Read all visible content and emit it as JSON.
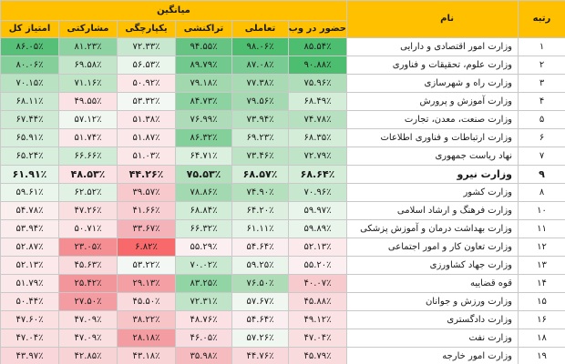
{
  "header": {
    "rank": "رتبه",
    "name": "نام",
    "group": "میانگین",
    "columns": [
      "حضور در وب",
      "تعاملی",
      "تراکنشی",
      "یکپارچگی",
      "مشارکتی",
      "امتیاز کل"
    ]
  },
  "rows": [
    {
      "rank": "۱",
      "name": "وزارت امور اقتصادی و دارایی",
      "bold": false,
      "values": [
        "۸۵.۵۴٪",
        "۹۸.۰۶٪",
        "۹۴.۵۵٪",
        "۷۲.۳۳٪",
        "۸۱.۲۳٪",
        "۸۶.۰۵٪"
      ],
      "colors": [
        "#4dbd6f",
        "#4dbd6f",
        "#66c483",
        "#c7e8cf",
        "#8dd3a2",
        "#57c078"
      ]
    },
    {
      "rank": "۲",
      "name": "وزارت علوم، تحقیقات و فناوری",
      "bold": false,
      "values": [
        "۹۰.۸۸٪",
        "۸۷.۰۸٪",
        "۸۹.۷۹٪",
        "۵۶.۵۳٪",
        "۶۹.۵۸٪",
        "۸۰.۰۶٪"
      ],
      "colors": [
        "#4dbd6f",
        "#78cb92",
        "#72c98d",
        "#eaf5ec",
        "#c3e6ca",
        "#84cf9a"
      ]
    },
    {
      "rank": "۳",
      "name": "وزارت راه و شهرسازی",
      "bold": false,
      "values": [
        "۷۵.۹۶٪",
        "۷۷.۳۸٪",
        "۷۹.۱۸٪",
        "۵۰.۹۲٪",
        "۷۱.۱۶٪",
        "۷۰.۱۵٪"
      ],
      "colors": [
        "#b0deba",
        "#a8dbb4",
        "#a1d8ae",
        "#fbe6e8",
        "#bfe4c6",
        "#b9e2c2"
      ]
    },
    {
      "rank": "۴",
      "name": "وزارت آموزش و پرورش",
      "bold": false,
      "values": [
        "۶۸.۴۹٪",
        "۷۹.۵۶٪",
        "۸۴.۷۳٪",
        "۵۳.۳۲٪",
        "۴۹.۵۵٪",
        "۶۸.۱۱٪"
      ],
      "colors": [
        "#d3edd8",
        "#a4d9b1",
        "#8cd3a1",
        "#f4f8f4",
        "#fbe3e5",
        "#cbe9d2"
      ]
    },
    {
      "rank": "۵",
      "name": "وزارت صنعت، معدن، تجارت",
      "bold": false,
      "values": [
        "۷۴.۷۸٪",
        "۷۳.۹۴٪",
        "۷۶.۹۹٪",
        "۵۱.۳۸٪",
        "۵۷.۱۲٪",
        "۶۷.۴۴٪"
      ],
      "colors": [
        "#b6e0bf",
        "#b8e1c1",
        "#aedcb8",
        "#fbe7e9",
        "#f0f7f1",
        "#cee9d4"
      ]
    },
    {
      "rank": "۶",
      "name": "وزارت ارتباطات و فناوری اطلاعات",
      "bold": false,
      "values": [
        "۶۸.۳۵٪",
        "۶۹.۲۳٪",
        "۸۶.۳۲٪",
        "۵۱.۸۷٪",
        "۵۱.۷۴٪",
        "۶۵.۹۱٪"
      ],
      "colors": [
        "#d3edd8",
        "#cfebd5",
        "#84d09a",
        "#fbe8ea",
        "#fbe8ea",
        "#d6eedb"
      ]
    },
    {
      "rank": "۷",
      "name": "نهاد ریاست جمهوری",
      "bold": false,
      "values": [
        "۷۲.۷۹٪",
        "۷۳.۴۶٪",
        "۶۴.۷۱٪",
        "۵۱.۰۳٪",
        "۶۶.۶۶٪",
        "۶۵.۲۴٪"
      ],
      "colors": [
        "#bfe4c7",
        "#bce3c4",
        "#dbf0df",
        "#fbe6e8",
        "#d0ecd6",
        "#d8efdd"
      ]
    },
    {
      "rank": "۹",
      "name": "وزارت نیرو",
      "bold": true,
      "values": [
        "۶۸.۶۴٪",
        "۶۸.۵۷٪",
        "۷۵.۵۳٪",
        "۴۴.۲۶٪",
        "۴۸.۵۳٪",
        "۶۱.۹۱٪"
      ],
      "colors": [
        "#d3edd8",
        "#d3edd8",
        "#b2dfbc",
        "#f9d8db",
        "#fbe2e4",
        "#e4f3e7"
      ]
    },
    {
      "rank": "۸",
      "name": "وزارت کشور",
      "bold": false,
      "values": [
        "۷۰.۹۶٪",
        "۷۴.۹۰٪",
        "۷۸.۸۶٪",
        "۳۹.۵۷٪",
        "۶۲.۵۲٪",
        "۵۹.۶۱٪"
      ],
      "colors": [
        "#c7e8cf",
        "#b5e0be",
        "#a3d9b0",
        "#f7c8cc",
        "#e1f2e4",
        "#eaf6ec"
      ]
    },
    {
      "rank": "۱۰",
      "name": "وزارت فرهنگ و ارشاد اسلامی",
      "bold": false,
      "values": [
        "۵۹.۹۷٪",
        "۶۴.۲۰٪",
        "۶۸.۸۴٪",
        "۴۱.۶۶٪",
        "۴۷.۲۶٪",
        "۵۴.۷۸٪"
      ],
      "colors": [
        "#e9f5eb",
        "#ddf0e0",
        "#d1ecd7",
        "#f8d0d3",
        "#fadfe1",
        "#fbeeef"
      ]
    },
    {
      "rank": "۱۱",
      "name": "وزارت بهداشت درمان و آموزش پزشکی",
      "bold": false,
      "values": [
        "۵۹.۸۹٪",
        "۶۱.۱۱٪",
        "۶۶.۳۲٪",
        "۳۳.۶۷٪",
        "۵۰.۷۱٪",
        "۵۳.۹۴٪"
      ],
      "colors": [
        "#e9f5eb",
        "#e5f3e8",
        "#d7eedc",
        "#f4b3b8",
        "#fbe5e7",
        "#fbeced"
      ]
    },
    {
      "rank": "۱۲",
      "name": "وزارت تعاون کار و امور اجتماعی",
      "bold": false,
      "values": [
        "۵۲.۱۳٪",
        "۵۴.۶۴٪",
        "۵۵.۲۹٪",
        "۶.۸۲٪",
        "۲۳.۰۵٪",
        "۵۲.۸۷٪"
      ],
      "colors": [
        "#fbe9eb",
        "#fbeef0",
        "#fbeff1",
        "#f8696b",
        "#f48e93",
        "#fbeaec"
      ]
    },
    {
      "rank": "۱۳",
      "name": "وزارت جهاد کشاورزی",
      "bold": false,
      "values": [
        "۵۵.۲۰٪",
        "۵۹.۲۵٪",
        "۷۰.۰۲٪",
        "۵۳.۲۲٪",
        "۴۵.۶۳٪",
        "۵۲.۱۳٪"
      ],
      "colors": [
        "#fbeff1",
        "#e9f5eb",
        "#c9e9d0",
        "#f4f8f4",
        "#f9dadd",
        "#fbe9eb"
      ]
    },
    {
      "rank": "۱۴",
      "name": "قوه قضاییه",
      "bold": false,
      "values": [
        "۴۰.۰۷٪",
        "۷۶.۵۰٪",
        "۸۳.۲۵٪",
        "۲۹.۱۳٪",
        "۲۵.۴۲٪",
        "۵۱.۷۹٪"
      ],
      "colors": [
        "#f7cacd",
        "#addcb7",
        "#91d5a5",
        "#f39fa4",
        "#f3969b",
        "#fbe8ea"
      ]
    },
    {
      "rank": "۱۵",
      "name": "وزارت ورزش و جوانان",
      "bold": false,
      "values": [
        "۴۵.۸۸٪",
        "۵۷.۶۷٪",
        "۷۲.۳۱٪",
        "۴۵.۵۰٪",
        "۲۷.۵۰٪",
        "۵۰.۴۴٪"
      ],
      "colors": [
        "#f9dbde",
        "#f0f7f1",
        "#bfe4c7",
        "#f9dadd",
        "#f39ca1",
        "#fbe4e6"
      ]
    },
    {
      "rank": "۱۶",
      "name": "وزارت دادگستری",
      "bold": false,
      "values": [
        "۴۹.۱۲٪",
        "۵۴.۶۴٪",
        "۴۸.۷۶٪",
        "۳۸.۲۲٪",
        "۴۷.۰۹٪",
        "۴۷.۶۰٪"
      ],
      "colors": [
        "#fbe2e4",
        "#fbeef0",
        "#fbe1e3",
        "#f7c4c8",
        "#fadfe1",
        "#fbe0e2"
      ]
    },
    {
      "rank": "۱۸",
      "name": "وزارت نفت",
      "bold": false,
      "values": [
        "۴۷.۰۴٪",
        "۵۷.۲۶٪",
        "۴۶.۰۵٪",
        "۲۸.۱۸٪",
        "۴۷.۰۹٪",
        "۴۷.۰۴٪"
      ],
      "colors": [
        "#fadfe1",
        "#f0f7f1",
        "#f9dcdf",
        "#f39ca1",
        "#fadfe1",
        "#fadfe1"
      ]
    },
    {
      "rank": "۱۹",
      "name": "وزارت امور خارجه",
      "bold": false,
      "values": [
        "۴۵.۷۹٪",
        "۴۴.۷۶٪",
        "۳۵.۹۸٪",
        "۴۳.۱۸٪",
        "۴۲.۸۵٪",
        "۴۳.۹۷٪"
      ],
      "colors": [
        "#f9dbde",
        "#f9d8db",
        "#f5bbbf",
        "#f8d4d7",
        "#f8d3d6",
        "#f9d6d9"
      ]
    }
  ]
}
